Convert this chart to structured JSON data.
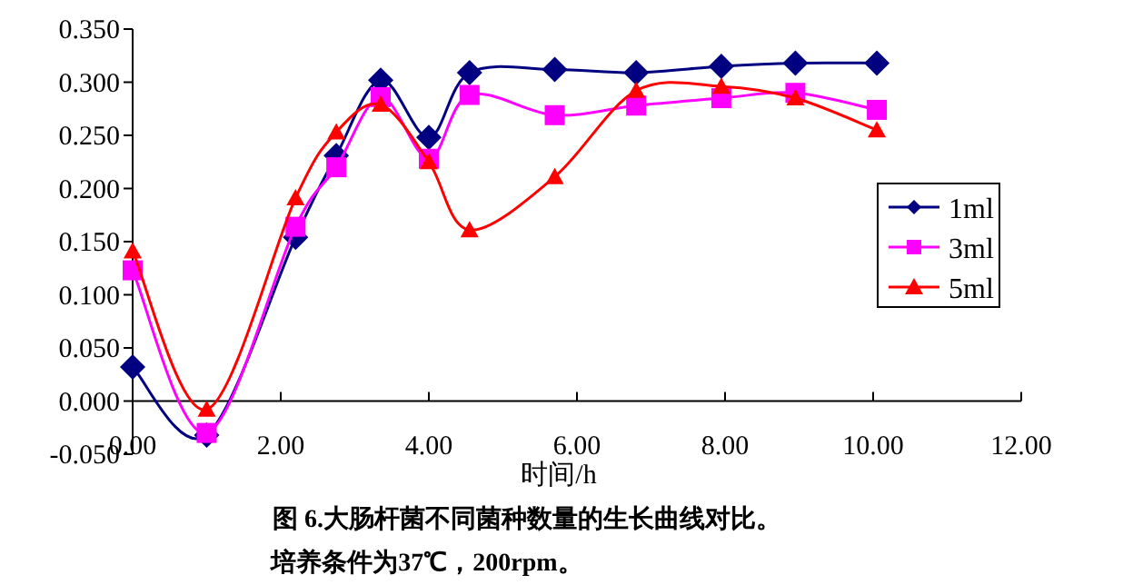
{
  "chart_data": {
    "type": "line",
    "title": "图 6.大肠杆菌不同菌种数量的生长曲线对比。",
    "subtitle": "培养条件为37℃，200rpm。",
    "xlabel": "时间/h",
    "x": [
      0,
      1.0,
      2.2,
      2.75,
      3.35,
      4.0,
      4.55,
      5.7,
      6.8,
      7.95,
      8.95,
      10.05
    ],
    "series": [
      {
        "name": "1ml",
        "color": "#000080",
        "marker": "diamond",
        "values": [
          0.032,
          -0.032,
          0.154,
          0.231,
          0.302,
          0.248,
          0.309,
          0.312,
          0.309,
          0.315,
          0.318,
          0.318
        ]
      },
      {
        "name": "3ml",
        "color": "#ff00ff",
        "marker": "square",
        "values": [
          0.123,
          -0.03,
          0.164,
          0.22,
          0.286,
          0.228,
          0.288,
          0.269,
          0.278,
          0.285,
          0.29,
          0.274
        ]
      },
      {
        "name": "5ml",
        "color": "#ff0000",
        "marker": "triangle",
        "values": [
          0.141,
          -0.008,
          0.191,
          0.253,
          0.279,
          0.225,
          0.161,
          0.211,
          0.292,
          0.296,
          0.285,
          0.255
        ]
      }
    ],
    "xlim": [
      0,
      12
    ],
    "xticks": [
      {
        "value": 0,
        "label": "0.00"
      },
      {
        "value": 2,
        "label": "2.00"
      },
      {
        "value": 4,
        "label": "4.00"
      },
      {
        "value": 6,
        "label": "6.00"
      },
      {
        "value": 8,
        "label": "8.00"
      },
      {
        "value": 10,
        "label": "10.00"
      },
      {
        "value": 12,
        "label": "12.00"
      }
    ],
    "ylim": [
      -0.05,
      0.35
    ],
    "yticks": [
      {
        "value": -0.05,
        "label": "-0.050"
      },
      {
        "value": 0,
        "label": "0.000"
      },
      {
        "value": 0.05,
        "label": "0.050"
      },
      {
        "value": 0.1,
        "label": "0.100"
      },
      {
        "value": 0.15,
        "label": "0.150"
      },
      {
        "value": 0.2,
        "label": "0.200"
      },
      {
        "value": 0.25,
        "label": "0.250"
      },
      {
        "value": 0.3,
        "label": "0.300"
      },
      {
        "value": 0.35,
        "label": "0.350"
      }
    ],
    "legend": "right",
    "grid": false,
    "line_style": "solid"
  }
}
